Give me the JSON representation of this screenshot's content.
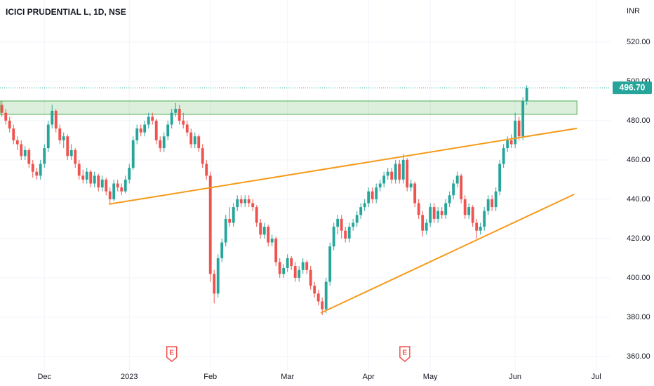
{
  "chart_data": {
    "type": "candlestick",
    "title": "ICICI PRUDENTIAL L, 1D, NSE",
    "currency": "INR",
    "open": [
      488,
      484,
      480,
      476,
      470,
      468,
      462,
      465,
      458,
      454,
      452,
      458,
      466,
      478,
      485,
      476,
      470,
      472,
      462,
      465,
      458,
      452,
      450,
      454,
      448,
      452,
      446,
      450,
      444,
      440,
      448,
      446,
      444,
      450,
      456,
      470,
      476,
      474,
      478,
      482,
      480,
      470,
      466,
      472,
      478,
      484,
      486,
      480,
      478,
      474,
      468,
      472,
      466,
      458,
      452,
      402,
      392,
      410,
      418,
      430,
      428,
      436,
      440,
      438,
      440,
      438,
      436,
      428,
      422,
      426,
      418,
      420,
      408,
      402,
      405,
      410,
      406,
      400,
      404,
      408,
      404,
      396,
      392,
      388,
      384,
      398,
      416,
      426,
      430,
      424,
      420,
      426,
      428,
      432,
      436,
      438,
      444,
      440,
      446,
      448,
      452,
      454,
      450,
      458,
      450,
      460,
      446,
      448,
      438,
      432,
      424,
      428,
      436,
      430,
      434,
      432,
      438,
      442,
      448,
      452,
      440,
      432,
      436,
      428,
      424,
      426,
      434,
      440,
      436,
      444,
      458,
      466,
      470,
      468,
      480,
      472,
      490
    ],
    "high": [
      490,
      486,
      482,
      478,
      472,
      470,
      467,
      466,
      460,
      456,
      460,
      468,
      480,
      488,
      486,
      478,
      474,
      473,
      468,
      466,
      460,
      455,
      456,
      455,
      454,
      453,
      452,
      451,
      446,
      450,
      450,
      448,
      452,
      458,
      472,
      478,
      478,
      480,
      484,
      484,
      481,
      472,
      474,
      480,
      486,
      489,
      488,
      484,
      480,
      476,
      474,
      473,
      468,
      460,
      454,
      404,
      412,
      420,
      432,
      436,
      438,
      442,
      442,
      442,
      442,
      440,
      437,
      430,
      428,
      427,
      422,
      421,
      410,
      407,
      412,
      411,
      408,
      406,
      410,
      409,
      406,
      398,
      394,
      390,
      400,
      418,
      428,
      432,
      432,
      426,
      428,
      430,
      434,
      438,
      440,
      446,
      446,
      448,
      450,
      454,
      456,
      456,
      460,
      460,
      463,
      461,
      450,
      449,
      440,
      434,
      430,
      438,
      438,
      436,
      436,
      440,
      444,
      450,
      454,
      453,
      442,
      438,
      437,
      430,
      428,
      436,
      442,
      442,
      446,
      460,
      468,
      472,
      473,
      484,
      482,
      492,
      498
    ],
    "low": [
      482,
      478,
      474,
      468,
      465,
      460,
      460,
      456,
      451,
      450,
      450,
      456,
      464,
      476,
      474,
      468,
      466,
      460,
      460,
      456,
      450,
      448,
      448,
      446,
      446,
      444,
      444,
      442,
      438,
      439,
      444,
      442,
      443,
      448,
      455,
      468,
      472,
      472,
      476,
      478,
      468,
      464,
      464,
      470,
      476,
      482,
      478,
      476,
      472,
      466,
      466,
      464,
      456,
      450,
      398,
      387,
      390,
      408,
      416,
      426,
      426,
      434,
      436,
      436,
      436,
      434,
      426,
      420,
      420,
      416,
      416,
      406,
      400,
      400,
      403,
      404,
      398,
      398,
      402,
      402,
      394,
      390,
      386,
      381,
      382,
      396,
      414,
      422,
      420,
      418,
      418,
      424,
      426,
      430,
      434,
      436,
      438,
      438,
      444,
      446,
      450,
      448,
      448,
      448,
      448,
      444,
      444,
      436,
      430,
      421,
      422,
      426,
      428,
      428,
      430,
      430,
      436,
      440,
      446,
      438,
      430,
      430,
      426,
      420,
      422,
      424,
      432,
      434,
      434,
      442,
      456,
      464,
      466,
      466,
      470,
      470,
      488
    ],
    "close": [
      484,
      480,
      476,
      470,
      468,
      462,
      465,
      458,
      454,
      452,
      458,
      466,
      478,
      485,
      476,
      470,
      472,
      462,
      465,
      458,
      452,
      450,
      454,
      448,
      452,
      446,
      450,
      444,
      440,
      448,
      446,
      444,
      450,
      456,
      470,
      476,
      474,
      478,
      482,
      480,
      470,
      466,
      472,
      478,
      484,
      486,
      480,
      478,
      474,
      468,
      472,
      466,
      458,
      452,
      402,
      392,
      410,
      418,
      430,
      428,
      436,
      440,
      438,
      440,
      438,
      436,
      428,
      422,
      426,
      418,
      420,
      408,
      402,
      405,
      410,
      406,
      400,
      404,
      408,
      404,
      396,
      392,
      388,
      384,
      398,
      416,
      426,
      430,
      424,
      420,
      426,
      428,
      432,
      436,
      438,
      444,
      440,
      446,
      448,
      452,
      454,
      450,
      458,
      450,
      460,
      446,
      448,
      438,
      432,
      424,
      428,
      436,
      430,
      434,
      432,
      438,
      442,
      448,
      452,
      440,
      432,
      436,
      428,
      424,
      426,
      434,
      440,
      436,
      444,
      458,
      466,
      470,
      468,
      480,
      472,
      490,
      496.7
    ],
    "up_color": "#26a69a",
    "down_color": "#ef5350",
    "xlim": [
      -0.5,
      157.7
    ],
    "xticks": [
      {
        "value": 11,
        "label": "Dec"
      },
      {
        "value": 33,
        "label": "2023"
      },
      {
        "value": 54,
        "label": "Feb"
      },
      {
        "value": 74,
        "label": "Mar"
      },
      {
        "value": 95,
        "label": "Apr"
      },
      {
        "value": 111,
        "label": "May"
      },
      {
        "value": 133,
        "label": "Jun"
      },
      {
        "value": 154,
        "label": "Jul"
      }
    ],
    "ylim": [
      352.1,
      541.4
    ],
    "yticks": [
      {
        "value": 360,
        "label": "360.00"
      },
      {
        "value": 380,
        "label": "380.00"
      },
      {
        "value": 400,
        "label": "400.00"
      },
      {
        "value": 420,
        "label": "420.00"
      },
      {
        "value": 440,
        "label": "440.00"
      },
      {
        "value": 460,
        "label": "460.00"
      },
      {
        "value": 480,
        "label": "480.00"
      },
      {
        "value": 500,
        "label": "500.00"
      },
      {
        "value": 520,
        "label": "520.00"
      }
    ],
    "grid": true,
    "last_price": {
      "value": 496.7,
      "label": "496.70"
    },
    "zones": [
      {
        "x": [
          -0.5,
          149
        ],
        "y": [
          483.2,
          490
        ],
        "color": "#4caf50"
      }
    ],
    "trendlines": [
      {
        "x": [
          27.7,
          149
        ],
        "y": [
          437.5,
          476.1
        ],
        "color": "#f59a1a"
      },
      {
        "x": [
          82.6,
          148.3
        ],
        "y": [
          382.1,
          442.5
        ],
        "color": "#f59a1a"
      }
    ],
    "events": [
      {
        "index": 44,
        "label": "E"
      },
      {
        "index": 104.4,
        "label": "E"
      }
    ],
    "event_color": "#ef5350"
  }
}
